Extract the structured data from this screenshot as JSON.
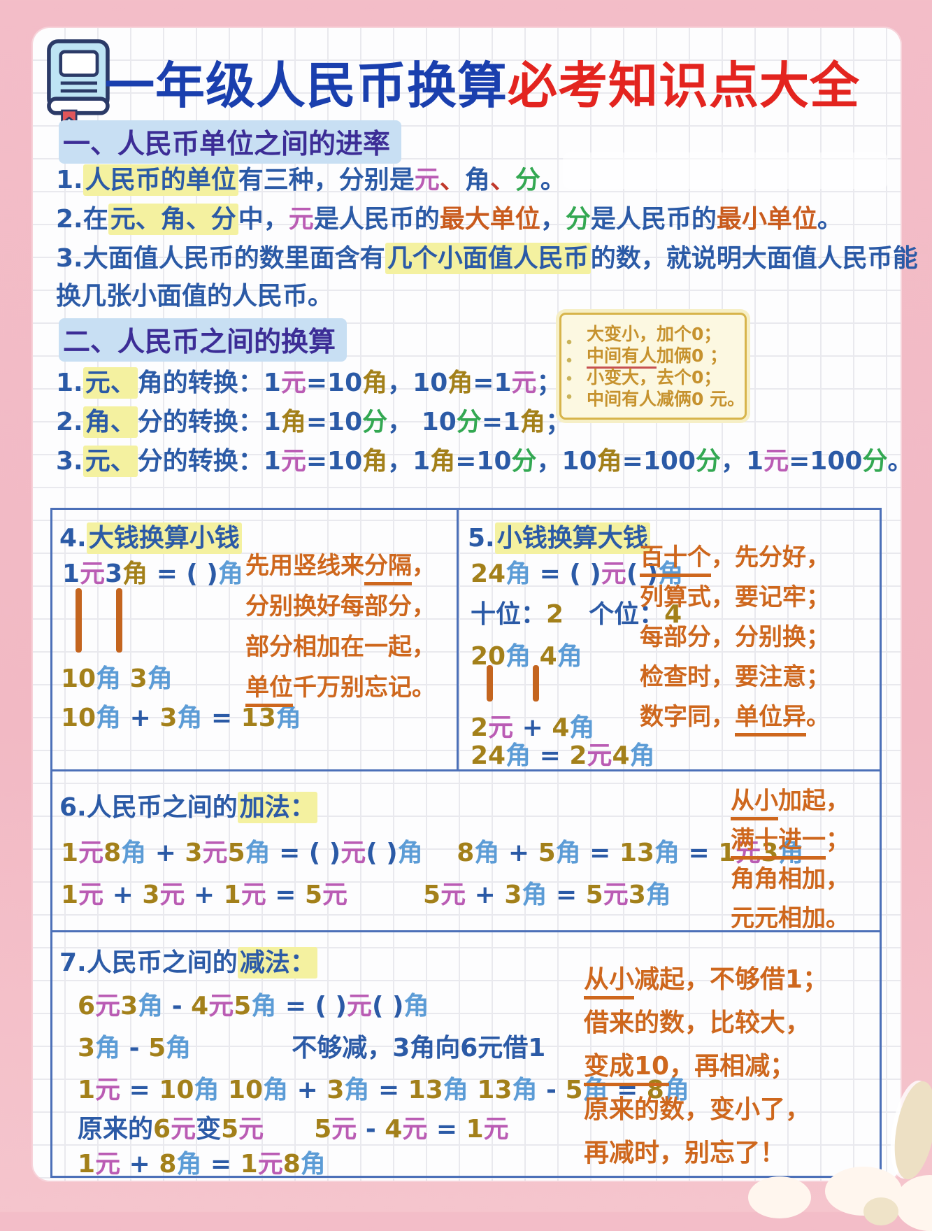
{
  "palette": {
    "title_blue": "#1A3FAE",
    "title_red": "#E3241F",
    "body_blue": "#2B5AA6",
    "yuan_pink": "#BA5CB4",
    "jiao_light_blue": "#5C9CD6",
    "jiao_gold": "#A3801A",
    "fen_green": "#33A852",
    "emphasis_orange": "#C95B1D",
    "poem_orange": "#CE671D",
    "note_gold": "#C6922E",
    "highlight_yellow": "#F4F1A0",
    "highlight_blue": "#C8DFF3",
    "table_border_blue": "#4C70B8",
    "frame_pink": "#F2B9C4"
  },
  "header": {
    "title": [
      {
        "t": "一年级人民币换算",
        "c": "tb"
      },
      {
        "t": "必考知识点大全",
        "c": "tr"
      }
    ]
  },
  "section1": {
    "heading": "一、人民币单位之间的进率",
    "lines": [
      [
        {
          "t": "1."
        },
        {
          "t": "人民币的单位",
          "c": "hl"
        },
        {
          "t": "有三种，分别是"
        },
        {
          "t": "元",
          "c": "y"
        },
        {
          "t": "、",
          "c": "rd"
        },
        {
          "t": "角"
        },
        {
          "t": "、",
          "c": "rd"
        },
        {
          "t": "分",
          "c": "f"
        },
        {
          "t": "。"
        }
      ],
      [
        {
          "t": "2.在"
        },
        {
          "t": "元、角、分",
          "c": "hl"
        },
        {
          "t": "中，"
        },
        {
          "t": "元",
          "c": "y"
        },
        {
          "t": "是人民币的"
        },
        {
          "t": "最大单位",
          "c": "o"
        },
        {
          "t": "，"
        },
        {
          "t": "分",
          "c": "f"
        },
        {
          "t": "是人民币的"
        },
        {
          "t": "最小单位",
          "c": "o"
        },
        {
          "t": "。"
        }
      ],
      [
        {
          "t": "3.大面值人民币的数里面含有"
        },
        {
          "t": "几个小面值人民币",
          "c": "hl"
        },
        {
          "t": "的数，就说明大面值人民币能"
        }
      ],
      [
        {
          "t": "换几张小面值的人民币。"
        }
      ]
    ]
  },
  "section2": {
    "heading": "二、人民币之间的换算",
    "lines": [
      [
        {
          "t": "1."
        },
        {
          "t": "元、",
          "c": "hl"
        },
        {
          "t": "角的转换："
        },
        {
          "t": "1"
        },
        {
          "t": "元",
          "c": "y"
        },
        {
          "t": "="
        },
        {
          "t": "10"
        },
        {
          "t": "角",
          "c": "jg"
        },
        {
          "t": "，"
        },
        {
          "t": "10"
        },
        {
          "t": "角",
          "c": "jg"
        },
        {
          "t": "="
        },
        {
          "t": "1"
        },
        {
          "t": "元",
          "c": "y"
        },
        {
          "t": "；"
        }
      ],
      [
        {
          "t": "2."
        },
        {
          "t": "角、",
          "c": "hl"
        },
        {
          "t": "分的转换："
        },
        {
          "t": "1"
        },
        {
          "t": "角",
          "c": "jg"
        },
        {
          "t": "="
        },
        {
          "t": "10"
        },
        {
          "t": "分",
          "c": "f"
        },
        {
          "t": "，  "
        },
        {
          "t": "10"
        },
        {
          "t": "分",
          "c": "f"
        },
        {
          "t": "="
        },
        {
          "t": "1"
        },
        {
          "t": "角",
          "c": "jg"
        },
        {
          "t": "；"
        }
      ],
      [
        {
          "t": "3."
        },
        {
          "t": "元、",
          "c": "hl"
        },
        {
          "t": "分的转换："
        },
        {
          "t": "1"
        },
        {
          "t": "元",
          "c": "y"
        },
        {
          "t": "="
        },
        {
          "t": "10"
        },
        {
          "t": "角",
          "c": "jg"
        },
        {
          "t": "，"
        },
        {
          "t": "1"
        },
        {
          "t": "角",
          "c": "jg"
        },
        {
          "t": "="
        },
        {
          "t": "10"
        },
        {
          "t": "分",
          "c": "f"
        },
        {
          "t": "，"
        },
        {
          "t": "10"
        },
        {
          "t": "角",
          "c": "jg"
        },
        {
          "t": "="
        },
        {
          "t": "100"
        },
        {
          "t": "分",
          "c": "f"
        },
        {
          "t": "，"
        },
        {
          "t": "1"
        },
        {
          "t": "元",
          "c": "y"
        },
        {
          "t": "="
        },
        {
          "t": "100"
        },
        {
          "t": "分",
          "c": "f"
        },
        {
          "t": "。"
        }
      ]
    ],
    "note_box": {
      "lines": [
        [
          {
            "t": "大变小，加个0；"
          }
        ],
        [
          {
            "t": "中间有人",
            "c": "ur"
          },
          {
            "t": "加俩0 ；"
          }
        ],
        [
          {
            "t": "小变大，去个0；"
          }
        ],
        [
          {
            "t": "中间有人减俩0 元。"
          }
        ]
      ]
    }
  },
  "table": {
    "cell4": {
      "title": [
        {
          "t": "4."
        },
        {
          "t": "大钱换算小钱",
          "c": "hl"
        }
      ],
      "eq1": [
        {
          "t": "1"
        },
        {
          "t": "元",
          "c": "y"
        },
        {
          "t": "3"
        },
        {
          "t": "角",
          "c": "jg"
        },
        {
          "t": " = ( )"
        },
        {
          "t": "角",
          "c": "j"
        }
      ],
      "eq2": [
        {
          "t": "10",
          "c": "n"
        },
        {
          "t": "角",
          "c": "j"
        },
        {
          "t": "  "
        },
        {
          "t": "3",
          "c": "n"
        },
        {
          "t": "角",
          "c": "j"
        }
      ],
      "eq3": [
        {
          "t": "10",
          "c": "n"
        },
        {
          "t": "角",
          "c": "j"
        },
        {
          "t": " + "
        },
        {
          "t": "3",
          "c": "n"
        },
        {
          "t": "角",
          "c": "j"
        },
        {
          "t": " = "
        },
        {
          "t": "13",
          "c": "n"
        },
        {
          "t": "角",
          "c": "j"
        }
      ],
      "poem": [
        [
          {
            "t": "先用竖线来"
          },
          {
            "t": "分隔",
            "c": "u"
          },
          {
            "t": "，"
          }
        ],
        [
          {
            "t": "分别换好每部分，"
          }
        ],
        [
          {
            "t": "部分相加在一起，"
          }
        ],
        [
          {
            "t": "单位",
            "c": "u"
          },
          {
            "t": "千万别忘记。"
          }
        ]
      ]
    },
    "cell5": {
      "title": [
        {
          "t": "5."
        },
        {
          "t": "小钱换算大钱",
          "c": "hl"
        }
      ],
      "eq1": [
        {
          "t": "24",
          "c": "n"
        },
        {
          "t": "角",
          "c": "j"
        },
        {
          "t": " = ( )"
        },
        {
          "t": "元",
          "c": "y"
        },
        {
          "t": "( )"
        },
        {
          "t": "角",
          "c": "j"
        }
      ],
      "line2": [
        {
          "t": "十位："
        },
        {
          "t": "2",
          "c": "n"
        },
        {
          "t": "　"
        },
        {
          "t": "个位："
        },
        {
          "t": "4",
          "c": "n"
        }
      ],
      "eq2": [
        {
          "t": "20",
          "c": "n"
        },
        {
          "t": "角",
          "c": "j"
        },
        {
          "t": " "
        },
        {
          "t": "4",
          "c": "n"
        },
        {
          "t": "角",
          "c": "j"
        }
      ],
      "eq3": [
        {
          "t": "2",
          "c": "n"
        },
        {
          "t": "元",
          "c": "y"
        },
        {
          "t": " + "
        },
        {
          "t": "4",
          "c": "n"
        },
        {
          "t": "角",
          "c": "j"
        }
      ],
      "eq4": [
        {
          "t": "24",
          "c": "n"
        },
        {
          "t": "角",
          "c": "j"
        },
        {
          "t": " = "
        },
        {
          "t": "2",
          "c": "n"
        },
        {
          "t": "元",
          "c": "y"
        },
        {
          "t": "4",
          "c": "n"
        },
        {
          "t": "角",
          "c": "j"
        }
      ],
      "poem": [
        [
          {
            "t": "百十个",
            "c": "u"
          },
          {
            "t": "，先分好，"
          }
        ],
        [
          {
            "t": "列算式，要记牢；"
          }
        ],
        [
          {
            "t": "每部分，分别换；"
          }
        ],
        [
          {
            "t": "检查时，要注意；"
          }
        ],
        [
          {
            "t": "数字同，"
          },
          {
            "t": "单位异",
            "c": "u"
          },
          {
            "t": "。"
          }
        ]
      ]
    },
    "row6": {
      "title": [
        {
          "t": "6.人民币之间的"
        },
        {
          "t": "加法：",
          "c": "hl"
        }
      ],
      "line1": [
        {
          "t": "1",
          "c": "n"
        },
        {
          "t": "元",
          "c": "y"
        },
        {
          "t": "8",
          "c": "n"
        },
        {
          "t": "角",
          "c": "j"
        },
        {
          "t": " + "
        },
        {
          "t": "3",
          "c": "n"
        },
        {
          "t": "元",
          "c": "y"
        },
        {
          "t": "5",
          "c": "n"
        },
        {
          "t": "角",
          "c": "j"
        },
        {
          "t": " = ( )"
        },
        {
          "t": "元",
          "c": "y"
        },
        {
          "t": "( )"
        },
        {
          "t": "角",
          "c": "j"
        },
        {
          "t": "　 "
        },
        {
          "t": "8",
          "c": "n"
        },
        {
          "t": "角",
          "c": "j"
        },
        {
          "t": " + "
        },
        {
          "t": "5",
          "c": "n"
        },
        {
          "t": "角",
          "c": "j"
        },
        {
          "t": " = "
        },
        {
          "t": "13",
          "c": "n"
        },
        {
          "t": "角",
          "c": "j"
        },
        {
          "t": " = "
        },
        {
          "t": "1",
          "c": "n"
        },
        {
          "t": "元",
          "c": "y"
        },
        {
          "t": "3",
          "c": "n"
        },
        {
          "t": "角",
          "c": "j"
        }
      ],
      "line2": [
        {
          "t": "1",
          "c": "n"
        },
        {
          "t": "元",
          "c": "y"
        },
        {
          "t": " + "
        },
        {
          "t": "3",
          "c": "n"
        },
        {
          "t": "元",
          "c": "y"
        },
        {
          "t": " + "
        },
        {
          "t": "1",
          "c": "n"
        },
        {
          "t": "元",
          "c": "y"
        },
        {
          "t": " = "
        },
        {
          "t": "5",
          "c": "n"
        },
        {
          "t": "元",
          "c": "y"
        },
        {
          "t": "　　　"
        },
        {
          "t": "5",
          "c": "n"
        },
        {
          "t": "元",
          "c": "y"
        },
        {
          "t": " + "
        },
        {
          "t": "3",
          "c": "n"
        },
        {
          "t": "角",
          "c": "j"
        },
        {
          "t": " = "
        },
        {
          "t": "5",
          "c": "n"
        },
        {
          "t": "元",
          "c": "y"
        },
        {
          "t": "3",
          "c": "n"
        },
        {
          "t": "角",
          "c": "j"
        }
      ],
      "poem": [
        [
          {
            "t": "从小",
            "c": "u"
          },
          {
            "t": "加起，"
          }
        ],
        [
          {
            "t": "满十进一",
            "c": "u"
          },
          {
            "t": "；"
          }
        ],
        [
          {
            "t": "角角相加，"
          }
        ],
        [
          {
            "t": "元元相加。"
          }
        ]
      ]
    },
    "row7": {
      "title": [
        {
          "t": "7.人民币之间的"
        },
        {
          "t": "减法：",
          "c": "hl"
        }
      ],
      "line1": [
        {
          "t": "6",
          "c": "n"
        },
        {
          "t": "元",
          "c": "y"
        },
        {
          "t": "3",
          "c": "n"
        },
        {
          "t": "角",
          "c": "j"
        },
        {
          "t": " - "
        },
        {
          "t": "4",
          "c": "n"
        },
        {
          "t": "元",
          "c": "y"
        },
        {
          "t": "5",
          "c": "n"
        },
        {
          "t": "角",
          "c": "j"
        },
        {
          "t": " = ( )"
        },
        {
          "t": "元",
          "c": "y"
        },
        {
          "t": "( )"
        },
        {
          "t": "角",
          "c": "j"
        }
      ],
      "line2": [
        {
          "t": "3",
          "c": "n"
        },
        {
          "t": "角",
          "c": "j"
        },
        {
          "t": " - "
        },
        {
          "t": "5",
          "c": "n"
        },
        {
          "t": "角",
          "c": "j"
        },
        {
          "t": "　　　　"
        },
        {
          "t": "不够减，3角向6元借1"
        }
      ],
      "line3": [
        {
          "t": "1",
          "c": "n"
        },
        {
          "t": "元",
          "c": "y"
        },
        {
          "t": " = "
        },
        {
          "t": "10",
          "c": "n"
        },
        {
          "t": "角",
          "c": "j"
        },
        {
          "t": "  "
        },
        {
          "t": "10",
          "c": "n"
        },
        {
          "t": "角",
          "c": "j"
        },
        {
          "t": " + "
        },
        {
          "t": "3",
          "c": "n"
        },
        {
          "t": "角",
          "c": "j"
        },
        {
          "t": " = "
        },
        {
          "t": "13",
          "c": "n"
        },
        {
          "t": "角",
          "c": "j"
        },
        {
          "t": "  "
        },
        {
          "t": "13",
          "c": "n"
        },
        {
          "t": "角",
          "c": "j"
        },
        {
          "t": " - "
        },
        {
          "t": "5",
          "c": "n"
        },
        {
          "t": "角",
          "c": "j"
        },
        {
          "t": " = "
        },
        {
          "t": "8",
          "c": "n"
        },
        {
          "t": "角",
          "c": "j"
        }
      ],
      "line4": [
        {
          "t": "原来的"
        },
        {
          "t": "6",
          "c": "n"
        },
        {
          "t": "元",
          "c": "y"
        },
        {
          "t": "变"
        },
        {
          "t": "5",
          "c": "n"
        },
        {
          "t": "元",
          "c": "y"
        },
        {
          "t": "　　"
        },
        {
          "t": "5",
          "c": "n"
        },
        {
          "t": "元",
          "c": "y"
        },
        {
          "t": " - "
        },
        {
          "t": "4",
          "c": "n"
        },
        {
          "t": "元",
          "c": "y"
        },
        {
          "t": " = "
        },
        {
          "t": "1",
          "c": "n"
        },
        {
          "t": "元",
          "c": "y"
        }
      ],
      "line5": [
        {
          "t": "1",
          "c": "n"
        },
        {
          "t": "元",
          "c": "y"
        },
        {
          "t": " + "
        },
        {
          "t": "8",
          "c": "n"
        },
        {
          "t": "角",
          "c": "j"
        },
        {
          "t": " = "
        },
        {
          "t": "1",
          "c": "n"
        },
        {
          "t": "元",
          "c": "y"
        },
        {
          "t": "8",
          "c": "n"
        },
        {
          "t": "角",
          "c": "j"
        }
      ],
      "poem": [
        [
          {
            "t": "从小",
            "c": "u"
          },
          {
            "t": "减起，不够借1；"
          }
        ],
        [
          {
            "t": "借来的数，比较大，"
          }
        ],
        [
          {
            "t": "变成10",
            "c": "u"
          },
          {
            "t": "，再相减；"
          }
        ],
        [
          {
            "t": "原来的数，变小了，"
          }
        ],
        [
          {
            "t": "再减时，别忘了！"
          }
        ]
      ]
    }
  }
}
